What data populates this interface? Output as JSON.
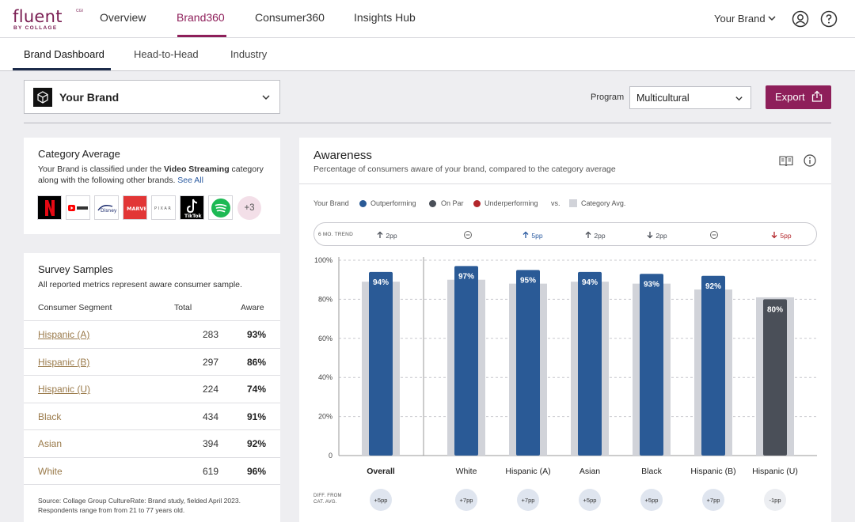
{
  "nav": {
    "logo_text": "fluent",
    "logo_sub": "BY COLLAGE",
    "logo_tm": "CGI",
    "items": [
      "Overview",
      "Brand360",
      "Consumer360",
      "Insights Hub"
    ],
    "brand_select": "Your Brand"
  },
  "subnav": {
    "items": [
      "Brand Dashboard",
      "Head-to-Head",
      "Industry"
    ]
  },
  "toolbar": {
    "brand_label": "Your Brand",
    "program_label": "Program",
    "program_value": "Multicultural",
    "export_label": "Export"
  },
  "category": {
    "title": "Category Average",
    "text_1": "Your Brand is classified under the ",
    "category_name": "Video Streaming",
    "text_2": " category",
    "text_3": "along with the following other brands. ",
    "see_all": "See All",
    "brands": [
      "Netflix",
      "YouTube",
      "Disney+",
      "Marvel",
      "Pixar",
      "TikTok",
      "Spotify"
    ],
    "more": "+3"
  },
  "survey": {
    "title": "Survey Samples",
    "subtitle": "All reported metrics represent aware consumer sample.",
    "headers": [
      "Consumer Segment",
      "Total",
      "Aware"
    ],
    "rows": [
      {
        "segment": "Hispanic (A)",
        "total": "283",
        "aware": "93%"
      },
      {
        "segment": "Hispanic (B)",
        "total": "297",
        "aware": "86%"
      },
      {
        "segment": "Hispanic (U)",
        "total": "224",
        "aware": "74%"
      },
      {
        "segment": "Black",
        "total": "434",
        "aware": "91%"
      },
      {
        "segment": "Asian",
        "total": "394",
        "aware": "92%"
      },
      {
        "segment": "White",
        "total": "619",
        "aware": "96%"
      }
    ],
    "source_1": "Source: Collage Group CultureRate: Brand study, fielded April 2023.",
    "source_2": "Respondents range from from 21 to 77 years old."
  },
  "awareness": {
    "title": "Awareness",
    "subtitle": "Percentage of consumers aware of your brand, compared to the category average",
    "legend": {
      "your_brand": "Your Brand",
      "outperforming": "Outperforming",
      "on_par": "On Par",
      "underperforming": "Underperforming",
      "vs": "vs.",
      "category_avg": "Category Avg."
    },
    "trend_label": "6 MO. TREND",
    "trends": [
      {
        "dir": "up",
        "text": "2pp",
        "color": "#4a4f58"
      },
      {
        "dir": "flat",
        "text": "",
        "color": "#4a4f58"
      },
      {
        "dir": "up",
        "text": "5pp",
        "color": "#2a5aa0"
      },
      {
        "dir": "up",
        "text": "2pp",
        "color": "#4a4f58"
      },
      {
        "dir": "down",
        "text": "2pp",
        "color": "#4a4f58"
      },
      {
        "dir": "flat",
        "text": "",
        "color": "#4a4f58"
      },
      {
        "dir": "down",
        "text": "5pp",
        "color": "#b3262b"
      }
    ],
    "diff_label_1": "DIFF. FROM",
    "diff_label_2": "CAT. AVG.",
    "diffs": [
      "+5pp",
      "+7pp",
      "+7pp",
      "+5pp",
      "+5pp",
      "+7pp",
      "-1pp"
    ]
  },
  "colors": {
    "accent": "#8e1f5a",
    "outperforming": "#2a5a96",
    "on_par": "#4a4f58",
    "underperforming": "#b3262b",
    "category_avg": "#d1d3d9"
  },
  "chart_data": {
    "type": "bar",
    "categories": [
      "Overall",
      "White",
      "Hispanic (A)",
      "Asian",
      "Black",
      "Hispanic (B)",
      "Hispanic (U)"
    ],
    "ylim": [
      0,
      100
    ],
    "yticks": [
      "0",
      "20%",
      "40%",
      "60%",
      "80%",
      "100%"
    ],
    "series": [
      {
        "name": "Your Brand",
        "values": [
          94,
          97,
          95,
          94,
          93,
          92,
          80
        ],
        "labels": [
          "94%",
          "97%",
          "95%",
          "94%",
          "93%",
          "92%",
          "80%"
        ],
        "status": [
          "outperforming",
          "outperforming",
          "outperforming",
          "outperforming",
          "outperforming",
          "outperforming",
          "on_par"
        ]
      },
      {
        "name": "Category Avg.",
        "values": [
          89,
          90,
          88,
          89,
          88,
          85,
          81
        ]
      }
    ]
  }
}
